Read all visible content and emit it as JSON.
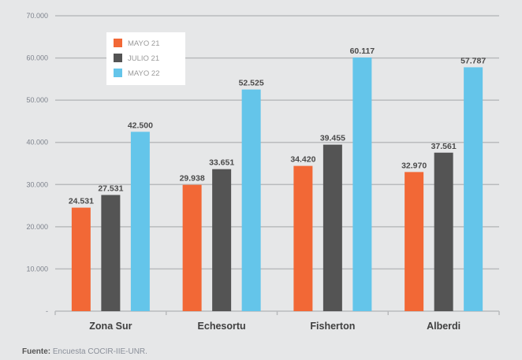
{
  "chart_data": {
    "type": "bar",
    "categories": [
      "Zona Sur",
      "Echesortu",
      "Fisherton",
      "Alberdi"
    ],
    "series": [
      {
        "name": "MAYO 21",
        "color": "#f26836",
        "values": [
          24531,
          29938,
          34420,
          32970
        ],
        "labels": [
          "24.531",
          "29.938",
          "34.420",
          "32.970"
        ]
      },
      {
        "name": "JULIO 21",
        "color": "#545454",
        "values": [
          27531,
          33651,
          39455,
          37561
        ],
        "labels": [
          "27.531",
          "33.651",
          "39.455",
          "37.561"
        ]
      },
      {
        "name": "MAYO 22",
        "color": "#64c5ea",
        "values": [
          42500,
          52525,
          60117,
          57787
        ],
        "labels": [
          "42.500",
          "52.525",
          "60.117",
          "57.787"
        ]
      }
    ],
    "ylim": [
      0,
      70000
    ],
    "yticks": [
      0,
      10000,
      20000,
      30000,
      40000,
      50000,
      60000,
      70000
    ],
    "ytick_labels": [
      "-",
      "10.000",
      "20.000",
      "30.000",
      "40.000",
      "50.000",
      "60.000",
      "70.000"
    ],
    "grid": true,
    "legend_position": "top-left"
  },
  "source": {
    "label": "Fuente:",
    "text": "Encuesta COCIR-IIE-UNR."
  }
}
